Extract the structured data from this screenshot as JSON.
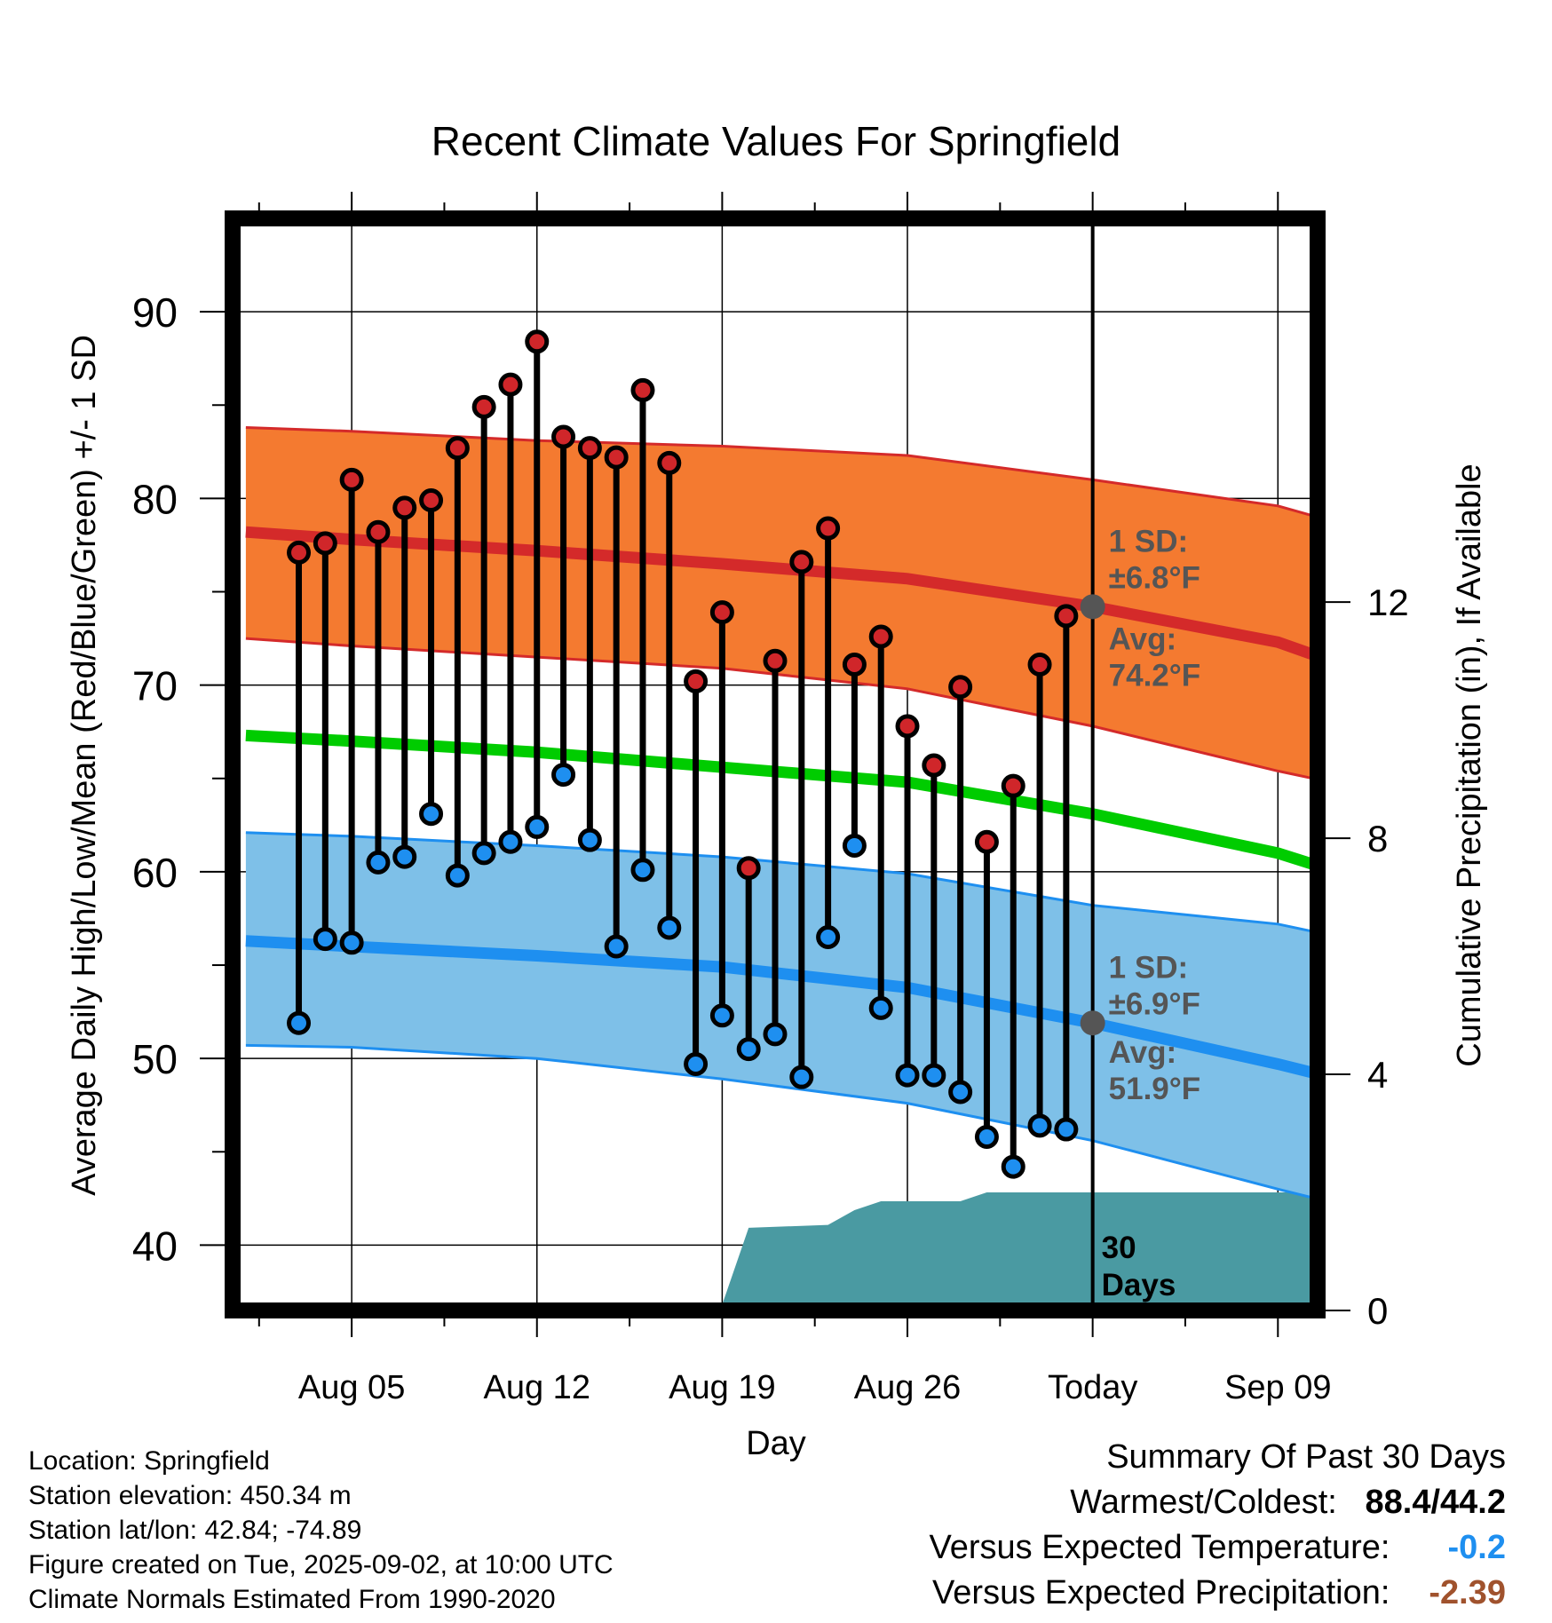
{
  "chart_data": {
    "type": "line",
    "title": "Recent Climate Values For Springfield",
    "xlabel": "Day",
    "ylabel": "Average Daily High/Low/Mean (Red/Blue/Green) +/- 1 SD",
    "y2label": "Cumulative Precipitation (in), If Available",
    "ylim": [
      36.5,
      95
    ],
    "y2lim": [
      0,
      18.5
    ],
    "yticks": [
      40,
      50,
      60,
      70,
      80,
      90
    ],
    "y2ticks": [
      0,
      4,
      8,
      12
    ],
    "xlim": [
      0.5,
      41.5
    ],
    "xticks": [
      {
        "day": 5,
        "label": "Aug 05"
      },
      {
        "day": 12,
        "label": "Aug 12"
      },
      {
        "day": 19,
        "label": "Aug 19"
      },
      {
        "day": 26,
        "label": "Aug 26"
      },
      {
        "day": 33,
        "label": "Today"
      },
      {
        "day": 40,
        "label": "Sep 09"
      }
    ],
    "today_day": 33,
    "grid": true,
    "colors": {
      "high_band": "#f47a30",
      "high_line": "#d42a2a",
      "low_band": "#7ec0e8",
      "low_line": "#1e8ff0",
      "mean_line": "#00cc00",
      "precip": "#4a9aa2",
      "high_dot": "#d0262a",
      "low_dot": "#1e8ff0",
      "annotation": "#555555"
    },
    "normals": {
      "days": [
        1,
        5,
        12,
        19,
        26,
        33,
        40,
        42
      ],
      "high_avg": [
        78.2,
        77.8,
        77.2,
        76.5,
        75.7,
        74.2,
        72.3,
        71.3
      ],
      "high_sd_upper": [
        83.8,
        83.6,
        83.1,
        82.8,
        82.3,
        81.0,
        79.6,
        78.8
      ],
      "high_sd_lower": [
        72.5,
        72.1,
        71.5,
        70.9,
        69.8,
        67.8,
        65.4,
        64.8
      ],
      "mean": [
        67.3,
        67.0,
        66.4,
        65.6,
        64.8,
        63.1,
        61.0,
        60.1
      ],
      "low_avg": [
        56.3,
        56.0,
        55.5,
        54.9,
        53.8,
        51.9,
        49.7,
        49.0
      ],
      "low_sd_upper": [
        62.1,
        61.9,
        61.4,
        60.8,
        59.9,
        58.2,
        57.2,
        56.6
      ],
      "low_sd_lower": [
        50.7,
        50.6,
        50.0,
        48.9,
        47.6,
        45.6,
        43.0,
        42.3
      ]
    },
    "daily": {
      "days": [
        3,
        4,
        5,
        6,
        7,
        8,
        9,
        10,
        11,
        12,
        13,
        14,
        15,
        16,
        17,
        18,
        19,
        20,
        21,
        22,
        23,
        24,
        25,
        26,
        27,
        28,
        29,
        30,
        31,
        32
      ],
      "high": [
        77.1,
        77.6,
        81.0,
        78.2,
        79.5,
        79.9,
        82.7,
        84.9,
        86.1,
        88.4,
        83.3,
        82.7,
        82.2,
        85.8,
        81.9,
        70.2,
        73.9,
        60.2,
        71.3,
        76.6,
        78.4,
        71.1,
        72.6,
        67.8,
        65.7,
        69.9,
        61.6,
        64.6,
        71.1,
        73.7
      ],
      "low": [
        51.9,
        56.4,
        56.2,
        60.5,
        60.8,
        63.1,
        59.8,
        61.0,
        61.6,
        62.4,
        65.2,
        61.7,
        56.0,
        60.1,
        57.0,
        49.7,
        52.3,
        50.5,
        51.3,
        49.0,
        56.5,
        61.4,
        52.7,
        49.1,
        49.1,
        48.2,
        45.8,
        44.2,
        46.4,
        46.2
      ]
    },
    "precip": {
      "days": [
        0.5,
        14,
        16,
        19,
        20,
        23,
        24,
        25,
        28,
        29,
        33,
        41.5
      ],
      "cumulative": [
        0,
        0,
        0.05,
        0.1,
        1.4,
        1.45,
        1.7,
        1.85,
        1.85,
        2.0,
        2.0,
        2.0
      ]
    },
    "annotations": {
      "high_sd_label": "1 SD:",
      "high_sd_value": "±6.8°F",
      "high_avg_label": "Avg:",
      "high_avg_value": "74.2°F",
      "low_sd_label": "1 SD:",
      "low_sd_value": "±6.9°F",
      "low_avg_label": "Avg:",
      "low_avg_value": "51.9°F",
      "days_number": "30",
      "days_word": "Days"
    }
  },
  "footer": {
    "location": "Location: Springfield",
    "elevation": "Station elevation: 450.34 m",
    "latlon": "Station lat/lon: 42.84; -74.89",
    "created": "Figure created on Tue, 2025-09-02, at 10:00 UTC",
    "normals": "Climate Normals Estimated From 1990-2020"
  },
  "summary": {
    "title": "Summary Of Past 30 Days",
    "warmest_label": "Warmest/Coldest:",
    "warmest_value": "88.4/44.2",
    "temp_label": "Versus Expected Temperature:",
    "temp_value": "-0.2",
    "temp_color": "#1e8ff0",
    "precip_label": "Versus Expected Precipitation:",
    "precip_value": "-2.39",
    "precip_color": "#a0522d"
  }
}
